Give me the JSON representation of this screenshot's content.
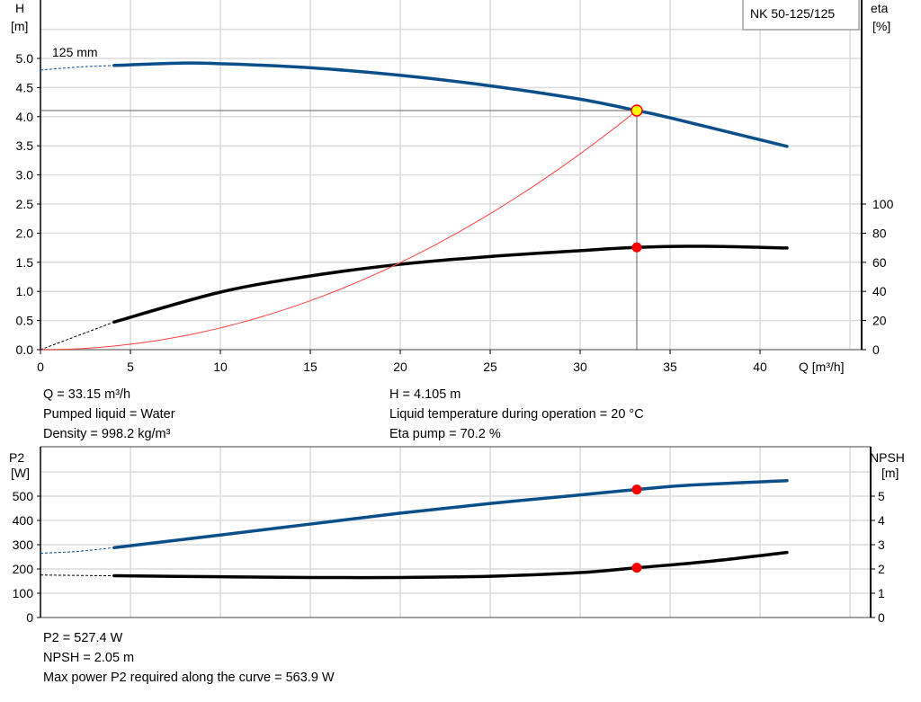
{
  "chart_data": [
    {
      "type": "line",
      "legend": "NK 50-125/125",
      "curve_label": "125 mm",
      "xlabel": "Q [m³/h]",
      "ylabel_left": [
        "H",
        "[m]"
      ],
      "ylabel_right": [
        "eta",
        "[%]"
      ],
      "xlim": [
        0,
        45
      ],
      "ylim_left": [
        0,
        5.5
      ],
      "ylim_right": [
        0,
        100
      ],
      "xticks": [
        0,
        5,
        10,
        15,
        20,
        25,
        30,
        35,
        40
      ],
      "yticks_left": [
        "0.0",
        "0.5",
        "1.0",
        "1.5",
        "2.0",
        "2.5",
        "3.0",
        "3.5",
        "4.0",
        "4.5",
        "5.0"
      ],
      "yticks_right": [
        0,
        20,
        40,
        60,
        80,
        100
      ],
      "grid": true,
      "series": [
        {
          "id": "H",
          "axis": "left",
          "color": "#0b4f8a",
          "extrapolated": {
            "x": [
              0,
              2,
              4.1
            ],
            "y": [
              4.8,
              4.85,
              4.88
            ]
          },
          "x": [
            4.1,
            8,
            10,
            15,
            20,
            25,
            30,
            33.15,
            35,
            41.5
          ],
          "y": [
            4.88,
            4.92,
            4.91,
            4.84,
            4.71,
            4.53,
            4.3,
            4.105,
            3.98,
            3.49
          ]
        },
        {
          "id": "eta",
          "axis": "right",
          "color": "#000000",
          "extrapolated": {
            "x": [
              0,
              4.1
            ],
            "y": [
              0,
              19
            ]
          },
          "x": [
            4.1,
            10,
            15,
            20,
            25,
            30,
            33.15,
            37,
            41.5
          ],
          "y": [
            19,
            39.5,
            50.6,
            58.6,
            64,
            68,
            70.2,
            71,
            69.8
          ]
        },
        {
          "id": "system",
          "axis": "left",
          "color": "#ff4040",
          "type": "parabola",
          "x_end": 33.15,
          "y_end": 4.105
        }
      ],
      "duty_point": {
        "Q": 33.15,
        "H": 4.105,
        "eta": 70.2
      }
    },
    {
      "type": "line",
      "ylabel_left": [
        "P2",
        "[W]"
      ],
      "ylabel_right": [
        "NPSH",
        "[m]"
      ],
      "xlim": [
        0,
        45
      ],
      "ylim_left": [
        0,
        600
      ],
      "ylim_right": [
        0,
        6
      ],
      "yticks_left": [
        0,
        100,
        200,
        300,
        400,
        500
      ],
      "yticks_right": [
        0,
        1,
        2,
        3,
        4,
        5
      ],
      "grid": true,
      "series": [
        {
          "id": "P2",
          "axis": "left",
          "color": "#0b4f8a",
          "extrapolated": {
            "x": [
              0,
              2,
              4.1
            ],
            "y": [
              265,
              272,
              288
            ]
          },
          "x": [
            4.1,
            10,
            15,
            20,
            25,
            30,
            33.15,
            36,
            41.5
          ],
          "y": [
            288,
            340,
            385,
            430,
            470,
            505,
            527.4,
            545,
            563.9
          ]
        },
        {
          "id": "NPSH",
          "axis": "right",
          "color": "#000000",
          "extrapolated": {
            "x": [
              0,
              4.1
            ],
            "y": [
              1.75,
              1.72
            ]
          },
          "x": [
            4.1,
            10,
            15,
            20,
            25,
            30,
            33.15,
            37,
            41.5
          ],
          "y": [
            1.72,
            1.68,
            1.65,
            1.65,
            1.7,
            1.85,
            2.05,
            2.3,
            2.68
          ]
        }
      ],
      "duty_point": {
        "Q": 33.15,
        "P2": 527.4,
        "NPSH": 2.05
      }
    }
  ],
  "info_top": {
    "q": "Q = 33.15 m³/h",
    "liquid": "Pumped liquid = Water",
    "density": "Density = 998.2 kg/m³",
    "h": "H = 4.105 m",
    "temp": "Liquid temperature during operation = 20 °C",
    "eta": "Eta pump = 70.2 %"
  },
  "info_bottom": {
    "p2": "P2 = 527.4 W",
    "npsh": "NPSH = 2.05 m",
    "max": "Max power P2 required along the curve = 563.9 W"
  }
}
